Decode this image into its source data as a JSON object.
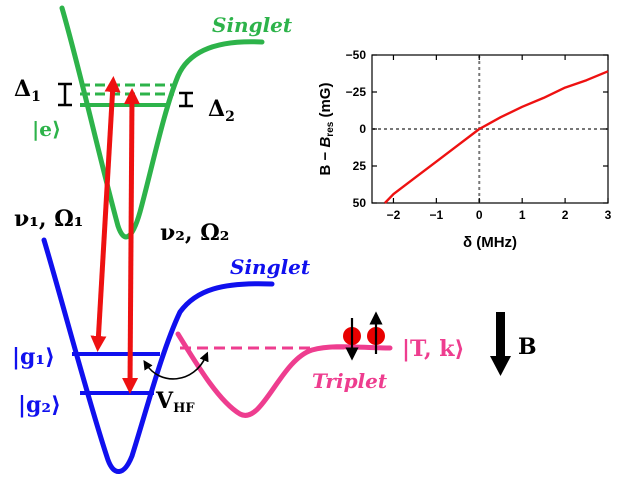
{
  "colors": {
    "excited": "#2db34a",
    "ground": "#1010ee",
    "triplet": "#ee3d8f",
    "laser": "#ee1111",
    "atom": "#e80000",
    "ink": "#000000"
  },
  "labels": {
    "singlet_top": "Singlet",
    "singlet_bottom": "Singlet",
    "triplet": "Triplet",
    "delta1": "Δ",
    "delta1_sub": "1",
    "delta2": "Δ",
    "delta2_sub": "2",
    "state_e": "|e⟩",
    "nu1_omega1": "ν₁, Ω₁",
    "nu2_omega2": "ν₂, Ω₂",
    "state_g1": "|g₁⟩",
    "state_g2": "|g₂⟩",
    "vhf": "V",
    "vhf_sub": "HF",
    "state_tk": "|T, k⟩",
    "field_b": "B"
  },
  "chart_data": {
    "type": "line",
    "xlabel": "δ (MHz)",
    "ylabel_prefix": "B − ",
    "ylabel_var": "B",
    "ylabel_sub": "res",
    "ylabel_unit": " (mG)",
    "xlim": [
      -2.5,
      3
    ],
    "ylim": [
      -50,
      50
    ],
    "y_inverted": true,
    "xticks": [
      -2,
      -1,
      0,
      1,
      2,
      3
    ],
    "yticks": [
      -50,
      -25,
      0,
      25,
      50
    ],
    "xtick_labels": [
      "−2",
      "−1",
      "0",
      "1",
      "2",
      "3"
    ],
    "ytick_labels": [
      "−50",
      "−25",
      "0",
      "25",
      "50"
    ],
    "reference_lines": {
      "x": 0,
      "y": 0
    },
    "series": [
      {
        "color": "#ee1111",
        "x": [
          -2.2,
          -2.0,
          -1.5,
          -1.0,
          -0.5,
          0.0,
          0.5,
          1.0,
          1.5,
          2.0,
          2.5,
          3.0
        ],
        "y": [
          50,
          44,
          33,
          22,
          11,
          0,
          -8,
          -15,
          -21,
          -28,
          -33,
          -39
        ]
      }
    ]
  }
}
